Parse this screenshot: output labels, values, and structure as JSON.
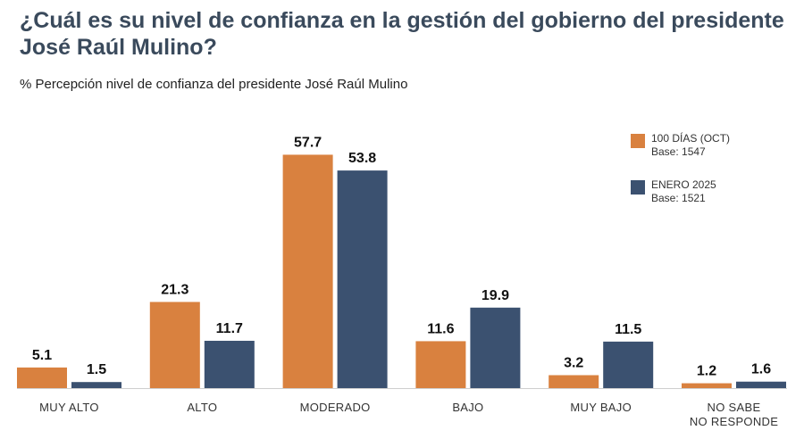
{
  "chart_data": {
    "type": "bar",
    "title": "¿Cuál es su nivel de confianza en la gestión del gobierno del presidente José Raúl Mulino?",
    "subtitle": "% Percepción nivel de confianza del presidente José Raúl Mulino",
    "categories": [
      [
        "MUY ALTO"
      ],
      [
        "ALTO"
      ],
      [
        "MODERADO"
      ],
      [
        "BAJO"
      ],
      [
        "MUY BAJO"
      ],
      [
        "NO SABE",
        "NO RESPONDE"
      ]
    ],
    "series": [
      {
        "name": "100 DÍAS (OCT)",
        "base": "Base: 1547",
        "color": "#d9813f",
        "values": [
          5.1,
          21.3,
          57.7,
          11.6,
          3.2,
          1.2
        ]
      },
      {
        "name": "ENERO 2025",
        "base": "Base: 1521",
        "color": "#3b5170",
        "values": [
          1.5,
          11.7,
          53.8,
          19.9,
          11.5,
          1.6
        ]
      }
    ],
    "ylim": [
      0,
      60
    ],
    "grid": false,
    "legend_position": "top-right",
    "value_decimals": 1
  }
}
